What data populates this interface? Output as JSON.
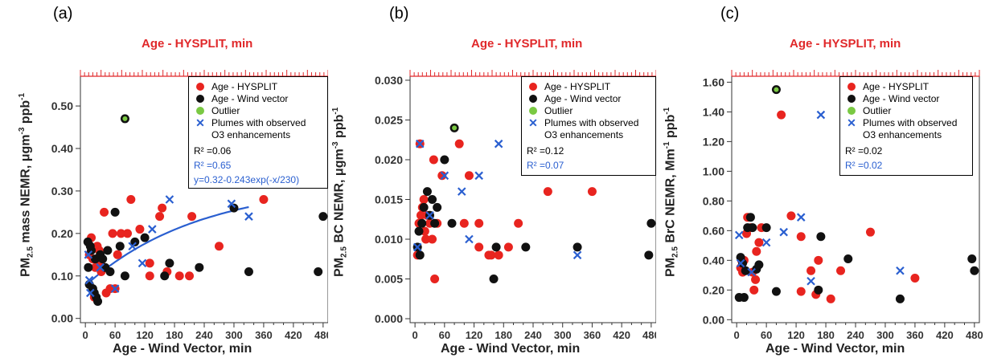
{
  "colors": {
    "red": "#e8241f",
    "black": "#111111",
    "green": "#7ac943",
    "blue": "#2a5fd0",
    "top_axis": "#e0282a"
  },
  "chart_data": [
    {
      "type": "scatter",
      "panel_label": "(a)",
      "top_axis_title": "Age - HYSPLIT, min",
      "xlabel": "Age - Wind Vector, min",
      "ylabel_main": "PM",
      "ylabel_sub": "2.5",
      "ylabel_rest": " mass NEMR, μgm",
      "ylabel_sup1": "-3",
      "ylabel_rest2": " ppb",
      "ylabel_sup2": "-1",
      "xlim": [
        -10,
        490
      ],
      "ylim": [
        -0.01,
        0.57
      ],
      "x_ticks": [
        "0",
        "60",
        "120",
        "180",
        "240",
        "300",
        "360",
        "420",
        "480"
      ],
      "y_ticks": [
        "0.00",
        "0.10",
        "0.20",
        "0.30",
        "0.40",
        "0.50"
      ],
      "legend": {
        "items": [
          "Age - HYSPLIT",
          "Age - Wind vector",
          "Outlier",
          "Plumes with observed",
          "O3 enhancements"
        ],
        "r2_black": "R² =0.06",
        "r2_blue": "R² =0.65",
        "fit_text": "y=0.32-0.243exp(-x/230)"
      },
      "fit": {
        "a": 0.32,
        "b": 0.243,
        "tau": 230,
        "x_range": [
          0,
          330
        ]
      },
      "series": [
        {
          "name": "Age - HYSPLIT",
          "points": [
            [
              8,
              0.15
            ],
            [
              12,
              0.19
            ],
            [
              15,
              0.14
            ],
            [
              18,
              0.05
            ],
            [
              20,
              0.12
            ],
            [
              24,
              0.17
            ],
            [
              28,
              0.16
            ],
            [
              32,
              0.11
            ],
            [
              38,
              0.25
            ],
            [
              42,
              0.06
            ],
            [
              50,
              0.07
            ],
            [
              55,
              0.2
            ],
            [
              65,
              0.15
            ],
            [
              72,
              0.2
            ],
            [
              85,
              0.2
            ],
            [
              92,
              0.28
            ],
            [
              110,
              0.21
            ],
            [
              130,
              0.13
            ],
            [
              130,
              0.1
            ],
            [
              150,
              0.24
            ],
            [
              155,
              0.26
            ],
            [
              165,
              0.11
            ],
            [
              190,
              0.1
            ],
            [
              210,
              0.1
            ],
            [
              215,
              0.24
            ],
            [
              270,
              0.17
            ],
            [
              360,
              0.28
            ],
            [
              30,
              0.13
            ],
            [
              60,
              0.07
            ]
          ]
        },
        {
          "name": "Age - Wind vector",
          "points": [
            [
              5,
              0.18
            ],
            [
              6,
              0.12
            ],
            [
              8,
              0.08
            ],
            [
              10,
              0.17
            ],
            [
              12,
              0.16
            ],
            [
              15,
              0.07
            ],
            [
              18,
              0.06
            ],
            [
              20,
              0.14
            ],
            [
              22,
              0.05
            ],
            [
              25,
              0.04
            ],
            [
              30,
              0.15
            ],
            [
              35,
              0.14
            ],
            [
              40,
              0.12
            ],
            [
              45,
              0.16
            ],
            [
              50,
              0.11
            ],
            [
              60,
              0.25
            ],
            [
              70,
              0.17
            ],
            [
              80,
              0.1
            ],
            [
              100,
              0.18
            ],
            [
              120,
              0.19
            ],
            [
              160,
              0.1
            ],
            [
              170,
              0.13
            ],
            [
              230,
              0.12
            ],
            [
              330,
              0.11
            ],
            [
              470,
              0.11
            ],
            [
              480,
              0.24
            ],
            [
              300,
              0.26
            ]
          ]
        },
        {
          "name": "Outlier",
          "points": [
            [
              80,
              0.47
            ]
          ]
        },
        {
          "name": "Plumes with observed O3 enhancements",
          "points": [
            [
              6,
              0.15
            ],
            [
              8,
              0.09
            ],
            [
              10,
              0.06
            ],
            [
              30,
              0.12
            ],
            [
              60,
              0.07
            ],
            [
              95,
              0.17
            ],
            [
              115,
              0.13
            ],
            [
              135,
              0.21
            ],
            [
              170,
              0.28
            ],
            [
              295,
              0.27
            ],
            [
              330,
              0.24
            ]
          ]
        }
      ]
    },
    {
      "type": "scatter",
      "panel_label": "(b)",
      "top_axis_title": "Age - HYSPLIT, min",
      "xlabel": "Age - Wind Vector, min",
      "ylabel_main": "PM",
      "ylabel_sub": "2.5",
      "ylabel_rest": " BC NEMR, μgm",
      "ylabel_sup1": "-3",
      "ylabel_rest2": " ppb",
      "ylabel_sup2": "-1",
      "xlim": [
        -10,
        490
      ],
      "ylim": [
        -0.0005,
        0.0305
      ],
      "x_ticks": [
        "0",
        "60",
        "120",
        "180",
        "240",
        "300",
        "360",
        "420",
        "480"
      ],
      "y_ticks": [
        "0.000",
        "0.005",
        "0.010",
        "0.015",
        "0.020",
        "0.025",
        "0.030"
      ],
      "legend": {
        "items": [
          "Age - HYSPLIT",
          "Age - Wind vector",
          "Outlier",
          "Plumes with observed",
          "O3 enhancements"
        ],
        "r2_black": "R² =0.12",
        "r2_blue": "R² =0.07"
      },
      "series": [
        {
          "name": "Age - HYSPLIT",
          "points": [
            [
              5,
              0.008
            ],
            [
              8,
              0.012
            ],
            [
              10,
              0.022
            ],
            [
              12,
              0.013
            ],
            [
              15,
              0.014
            ],
            [
              18,
              0.015
            ],
            [
              20,
              0.011
            ],
            [
              22,
              0.01
            ],
            [
              25,
              0.013
            ],
            [
              30,
              0.012
            ],
            [
              35,
              0.01
            ],
            [
              38,
              0.02
            ],
            [
              40,
              0.005
            ],
            [
              45,
              0.012
            ],
            [
              55,
              0.018
            ],
            [
              90,
              0.022
            ],
            [
              100,
              0.012
            ],
            [
              110,
              0.018
            ],
            [
              130,
              0.012
            ],
            [
              130,
              0.009
            ],
            [
              150,
              0.008
            ],
            [
              155,
              0.008
            ],
            [
              170,
              0.008
            ],
            [
              190,
              0.009
            ],
            [
              210,
              0.012
            ],
            [
              270,
              0.016
            ],
            [
              360,
              0.016
            ]
          ]
        },
        {
          "name": "Age - Wind vector",
          "points": [
            [
              5,
              0.009
            ],
            [
              8,
              0.011
            ],
            [
              10,
              0.008
            ],
            [
              14,
              0.012
            ],
            [
              18,
              0.014
            ],
            [
              25,
              0.016
            ],
            [
              30,
              0.013
            ],
            [
              35,
              0.015
            ],
            [
              40,
              0.012
            ],
            [
              45,
              0.014
            ],
            [
              60,
              0.02
            ],
            [
              75,
              0.012
            ],
            [
              165,
              0.009
            ],
            [
              225,
              0.009
            ],
            [
              330,
              0.009
            ],
            [
              475,
              0.008
            ],
            [
              480,
              0.012
            ],
            [
              160,
              0.005
            ]
          ]
        },
        {
          "name": "Outlier",
          "points": [
            [
              80,
              0.024
            ]
          ]
        },
        {
          "name": "Plumes with observed O3 enhancements",
          "points": [
            [
              5,
              0.009
            ],
            [
              10,
              0.022
            ],
            [
              30,
              0.013
            ],
            [
              60,
              0.018
            ],
            [
              95,
              0.016
            ],
            [
              110,
              0.01
            ],
            [
              130,
              0.018
            ],
            [
              170,
              0.022
            ],
            [
              330,
              0.008
            ]
          ]
        }
      ]
    },
    {
      "type": "scatter",
      "panel_label": "(c)",
      "top_axis_title": "Age - HYSPLIT, min",
      "xlabel": "Age - Wind Vector, min",
      "ylabel_main": "PM",
      "ylabel_sub": "2.5",
      "ylabel_rest": " BrC NEMR, Mm",
      "ylabel_sup1": "-1",
      "ylabel_rest2": " ppb",
      "ylabel_sup2": "-1",
      "xlim": [
        -10,
        490
      ],
      "ylim": [
        -0.02,
        1.64
      ],
      "x_ticks": [
        "0",
        "60",
        "120",
        "180",
        "240",
        "300",
        "360",
        "420",
        "480"
      ],
      "y_ticks": [
        "0.00",
        "0.20",
        "0.40",
        "0.60",
        "0.80",
        "1.00",
        "1.20",
        "1.40",
        "1.60"
      ],
      "legend": {
        "items": [
          "Age - HYSPLIT",
          "Age - Wind vector",
          "Outlier",
          "Plumes with observed",
          "O3 enhancements"
        ],
        "r2_black": "R² =0.02",
        "r2_blue": "R² =0.02"
      },
      "series": [
        {
          "name": "Age - HYSPLIT",
          "points": [
            [
              8,
              0.35
            ],
            [
              10,
              0.4
            ],
            [
              12,
              0.32
            ],
            [
              15,
              0.4
            ],
            [
              20,
              0.58
            ],
            [
              22,
              0.69
            ],
            [
              28,
              0.62
            ],
            [
              32,
              0.32
            ],
            [
              35,
              0.2
            ],
            [
              38,
              0.27
            ],
            [
              40,
              0.46
            ],
            [
              45,
              0.52
            ],
            [
              50,
              0.62
            ],
            [
              90,
              1.38
            ],
            [
              110,
              0.7
            ],
            [
              130,
              0.56
            ],
            [
              130,
              0.19
            ],
            [
              150,
              0.33
            ],
            [
              160,
              0.17
            ],
            [
              165,
              0.4
            ],
            [
              190,
              0.14
            ],
            [
              210,
              0.33
            ],
            [
              270,
              0.59
            ],
            [
              360,
              0.28
            ]
          ]
        },
        {
          "name": "Age - Wind vector",
          "points": [
            [
              5,
              0.15
            ],
            [
              8,
              0.42
            ],
            [
              12,
              0.38
            ],
            [
              15,
              0.15
            ],
            [
              18,
              0.33
            ],
            [
              22,
              0.62
            ],
            [
              28,
              0.69
            ],
            [
              32,
              0.62
            ],
            [
              40,
              0.34
            ],
            [
              45,
              0.37
            ],
            [
              60,
              0.62
            ],
            [
              80,
              0.19
            ],
            [
              165,
              0.2
            ],
            [
              170,
              0.56
            ],
            [
              225,
              0.41
            ],
            [
              330,
              0.14
            ],
            [
              475,
              0.41
            ],
            [
              480,
              0.33
            ]
          ]
        },
        {
          "name": "Outlier",
          "points": [
            [
              80,
              1.55
            ]
          ]
        },
        {
          "name": "Plumes with observed O3 enhancements",
          "points": [
            [
              5,
              0.57
            ],
            [
              8,
              0.38
            ],
            [
              30,
              0.32
            ],
            [
              60,
              0.52
            ],
            [
              95,
              0.59
            ],
            [
              130,
              0.69
            ],
            [
              150,
              0.26
            ],
            [
              170,
              1.38
            ],
            [
              330,
              0.33
            ]
          ]
        }
      ]
    }
  ]
}
